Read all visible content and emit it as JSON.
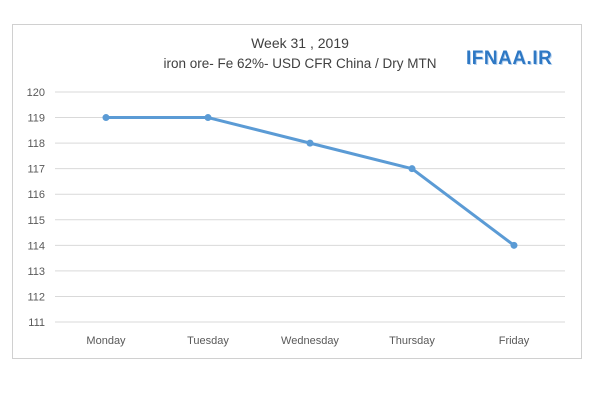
{
  "chart_data": {
    "type": "line",
    "title": "Week 31 , 2019",
    "subtitle": "iron ore- Fe 62%- USD CFR China / Dry MTN",
    "watermark": "IFNAA.IR",
    "categories": [
      "Monday",
      "Tuesday",
      "Wednesday",
      "Thursday",
      "Friday"
    ],
    "series": [
      {
        "values": [
          119,
          119,
          118,
          117,
          114
        ]
      }
    ],
    "ylim": [
      111,
      120
    ],
    "yticks": [
      120,
      119,
      118,
      117,
      116,
      115,
      114,
      113,
      112,
      111
    ],
    "grid": true,
    "legend": "none",
    "colors": {
      "line": "#5b9bd5",
      "grid": "#d9d9d9",
      "text": "#595959"
    }
  }
}
